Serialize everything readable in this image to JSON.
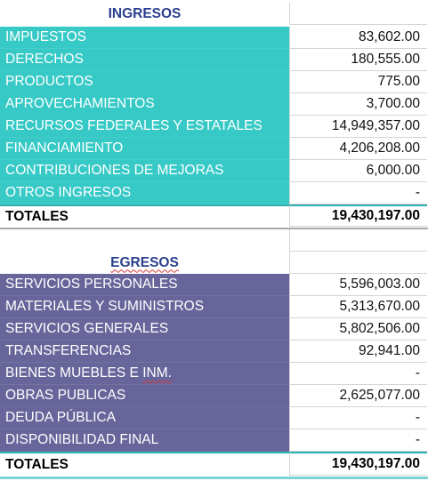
{
  "ingresos": {
    "title": "INGRESOS",
    "rows": [
      {
        "label": "IMPUESTOS",
        "value": "83,602.00"
      },
      {
        "label": "DERECHOS",
        "value": "180,555.00"
      },
      {
        "label": "PRODUCTOS",
        "value": "775.00"
      },
      {
        "label": "APROVECHAMIENTOS",
        "value": "3,700.00"
      },
      {
        "label": "RECURSOS FEDERALES Y ESTATALES",
        "value": "14,949,357.00"
      },
      {
        "label": "FINANCIAMIENTO",
        "value": "4,206,208.00"
      },
      {
        "label": "CONTRIBUCIONES DE MEJORAS",
        "value": "6,000.00"
      },
      {
        "label": "OTROS INGRESOS",
        "value": "-"
      }
    ],
    "total_label": "TOTALES",
    "total_value": "19,430,197.00"
  },
  "egresos": {
    "title": "EGRESOS",
    "rows": [
      {
        "label": "SERVICIOS PERSONALES",
        "value": "5,596,003.00"
      },
      {
        "label": "MATERIALES Y SUMINISTROS",
        "value": "5,313,670.00"
      },
      {
        "label": "SERVICIOS GENERALES",
        "value": "5,802,506.00"
      },
      {
        "label": "TRANSFERENCIAS",
        "value": "92,941.00"
      },
      {
        "label_prefix": "BIENES MUEBLES E ",
        "label_underlined": "INM.",
        "value": "-"
      },
      {
        "label": "OBRAS PUBLICAS",
        "value": "2,625,077.00"
      },
      {
        "label": "DEUDA PÚBLICA",
        "value": "-"
      },
      {
        "label": "DISPONIBILIDAD FINAL",
        "value": "-"
      }
    ],
    "total_label": "TOTALES",
    "total_value": "19,430,197.00"
  },
  "colors": {
    "ingresos_fill": "#36c9c6",
    "egresos_fill": "#67659a",
    "title_text": "#2b3f8f"
  }
}
